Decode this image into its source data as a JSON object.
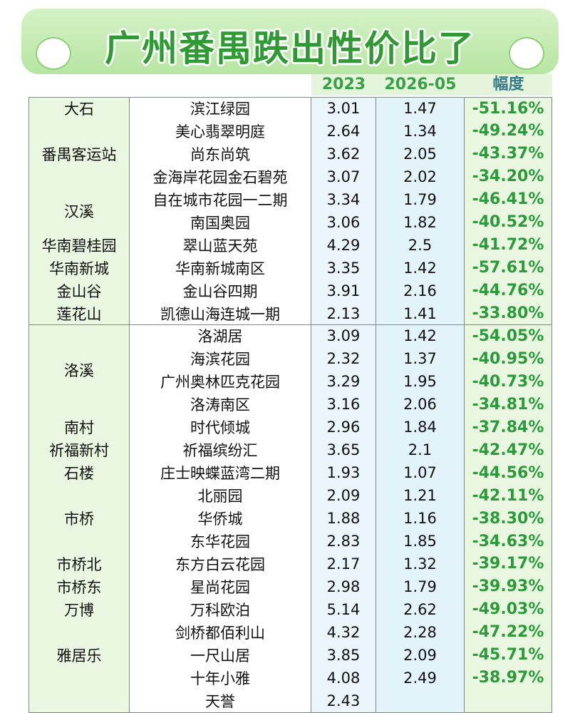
{
  "header": {
    "title": "广州番禺跌出性价比了",
    "columns": [
      "2023",
      "2026-05",
      "幅度"
    ]
  },
  "groups": [
    {
      "area": "大石",
      "rows": [
        {
          "estate": "滨江绿园",
          "v2023": 3.01,
          "v202605": 1.47,
          "change": "-51.16%"
        }
      ]
    },
    {
      "area": "番禺客运站",
      "rows": [
        {
          "estate": "美心翡翠明庭",
          "v2023": 2.64,
          "v202605": 1.34,
          "change": "-49.24%"
        },
        {
          "estate": "尚东尚筑",
          "v2023": 3.62,
          "v202605": 2.05,
          "change": "-43.37%"
        },
        {
          "estate": "金海岸花园金石碧苑",
          "v2023": 3.07,
          "v202605": 2.02,
          "change": "-34.20%"
        }
      ]
    },
    {
      "area": "汉溪",
      "rows": [
        {
          "estate": "自在城市花园一二期",
          "v2023": 3.34,
          "v202605": 1.79,
          "change": "-46.41%"
        },
        {
          "estate": "南国奥园",
          "v2023": 3.06,
          "v202605": 1.82,
          "change": "-40.52%"
        }
      ]
    },
    {
      "area": "华南碧桂园",
      "rows": [
        {
          "estate": "翠山蓝天苑",
          "v2023": 4.29,
          "v202605": 2.5,
          "change": "-41.72%"
        }
      ]
    },
    {
      "area": "华南新城",
      "rows": [
        {
          "estate": "华南新城南区",
          "v2023": 3.35,
          "v202605": 1.42,
          "change": "-57.61%"
        }
      ]
    },
    {
      "area": "金山谷",
      "rows": [
        {
          "estate": "金山谷四期",
          "v2023": 3.91,
          "v202605": 2.16,
          "change": "-44.76%"
        }
      ]
    },
    {
      "area": "莲花山",
      "rows": [
        {
          "estate": "凯德山海连城一期",
          "v2023": 2.13,
          "v202605": 1.41,
          "change": "-33.80%"
        }
      ]
    },
    {
      "area": "洛溪",
      "rows": [
        {
          "estate": "洛湖居",
          "v2023": 3.09,
          "v202605": 1.42,
          "change": "-54.05%"
        },
        {
          "estate": "海滨花园",
          "v2023": 2.32,
          "v202605": 1.37,
          "change": "-40.95%"
        },
        {
          "estate": "广州奥林匹克花园",
          "v2023": 3.29,
          "v202605": 1.95,
          "change": "-40.73%"
        },
        {
          "estate": "洛涛南区",
          "v2023": 3.16,
          "v202605": 2.06,
          "change": "-34.81%"
        }
      ]
    },
    {
      "area": "南村",
      "rows": [
        {
          "estate": "时代倾城",
          "v2023": 2.96,
          "v202605": 1.84,
          "change": "-37.84%"
        }
      ]
    },
    {
      "area": "祈福新村",
      "rows": [
        {
          "estate": "祈福缤纷汇",
          "v2023": 3.65,
          "v202605": 2.1,
          "change": "-42.47%"
        }
      ]
    },
    {
      "area": "石楼",
      "rows": [
        {
          "estate": "庄士映蝶蓝湾二期",
          "v2023": 1.93,
          "v202605": 1.07,
          "change": "-44.56%"
        }
      ]
    },
    {
      "area": "市桥",
      "rows": [
        {
          "estate": "北丽园",
          "v2023": 2.09,
          "v202605": 1.21,
          "change": "-42.11%"
        },
        {
          "estate": "华侨城",
          "v2023": 1.88,
          "v202605": 1.16,
          "change": "-38.30%"
        },
        {
          "estate": "东华花园",
          "v2023": 2.83,
          "v202605": 1.85,
          "change": "-34.63%"
        }
      ]
    },
    {
      "area": "市桥北",
      "rows": [
        {
          "estate": "东方白云花园",
          "v2023": 2.17,
          "v202605": 1.32,
          "change": "-39.17%"
        }
      ]
    },
    {
      "area": "市桥东",
      "rows": [
        {
          "estate": "星尚花园",
          "v2023": 2.98,
          "v202605": 1.79,
          "change": "-39.93%"
        }
      ]
    },
    {
      "area": "万博",
      "rows": [
        {
          "estate": "万科欧泊",
          "v2023": 5.14,
          "v202605": 2.62,
          "change": "-49.03%"
        }
      ]
    },
    {
      "area": "雅居乐",
      "rows": [
        {
          "estate": "剑桥都佰利山",
          "v2023": 4.32,
          "v202605": 2.28,
          "change": "-47.22%"
        },
        {
          "estate": "一尺山居",
          "v2023": 3.85,
          "v202605": 2.09,
          "change": "-45.71%"
        },
        {
          "estate": "十年小雅",
          "v2023": 4.08,
          "v202605": 2.49,
          "change": "-38.97%"
        }
      ]
    },
    {
      "rows": [
        {
          "estate": "天誉",
          "v2023": 2.43
        }
      ]
    }
  ]
}
